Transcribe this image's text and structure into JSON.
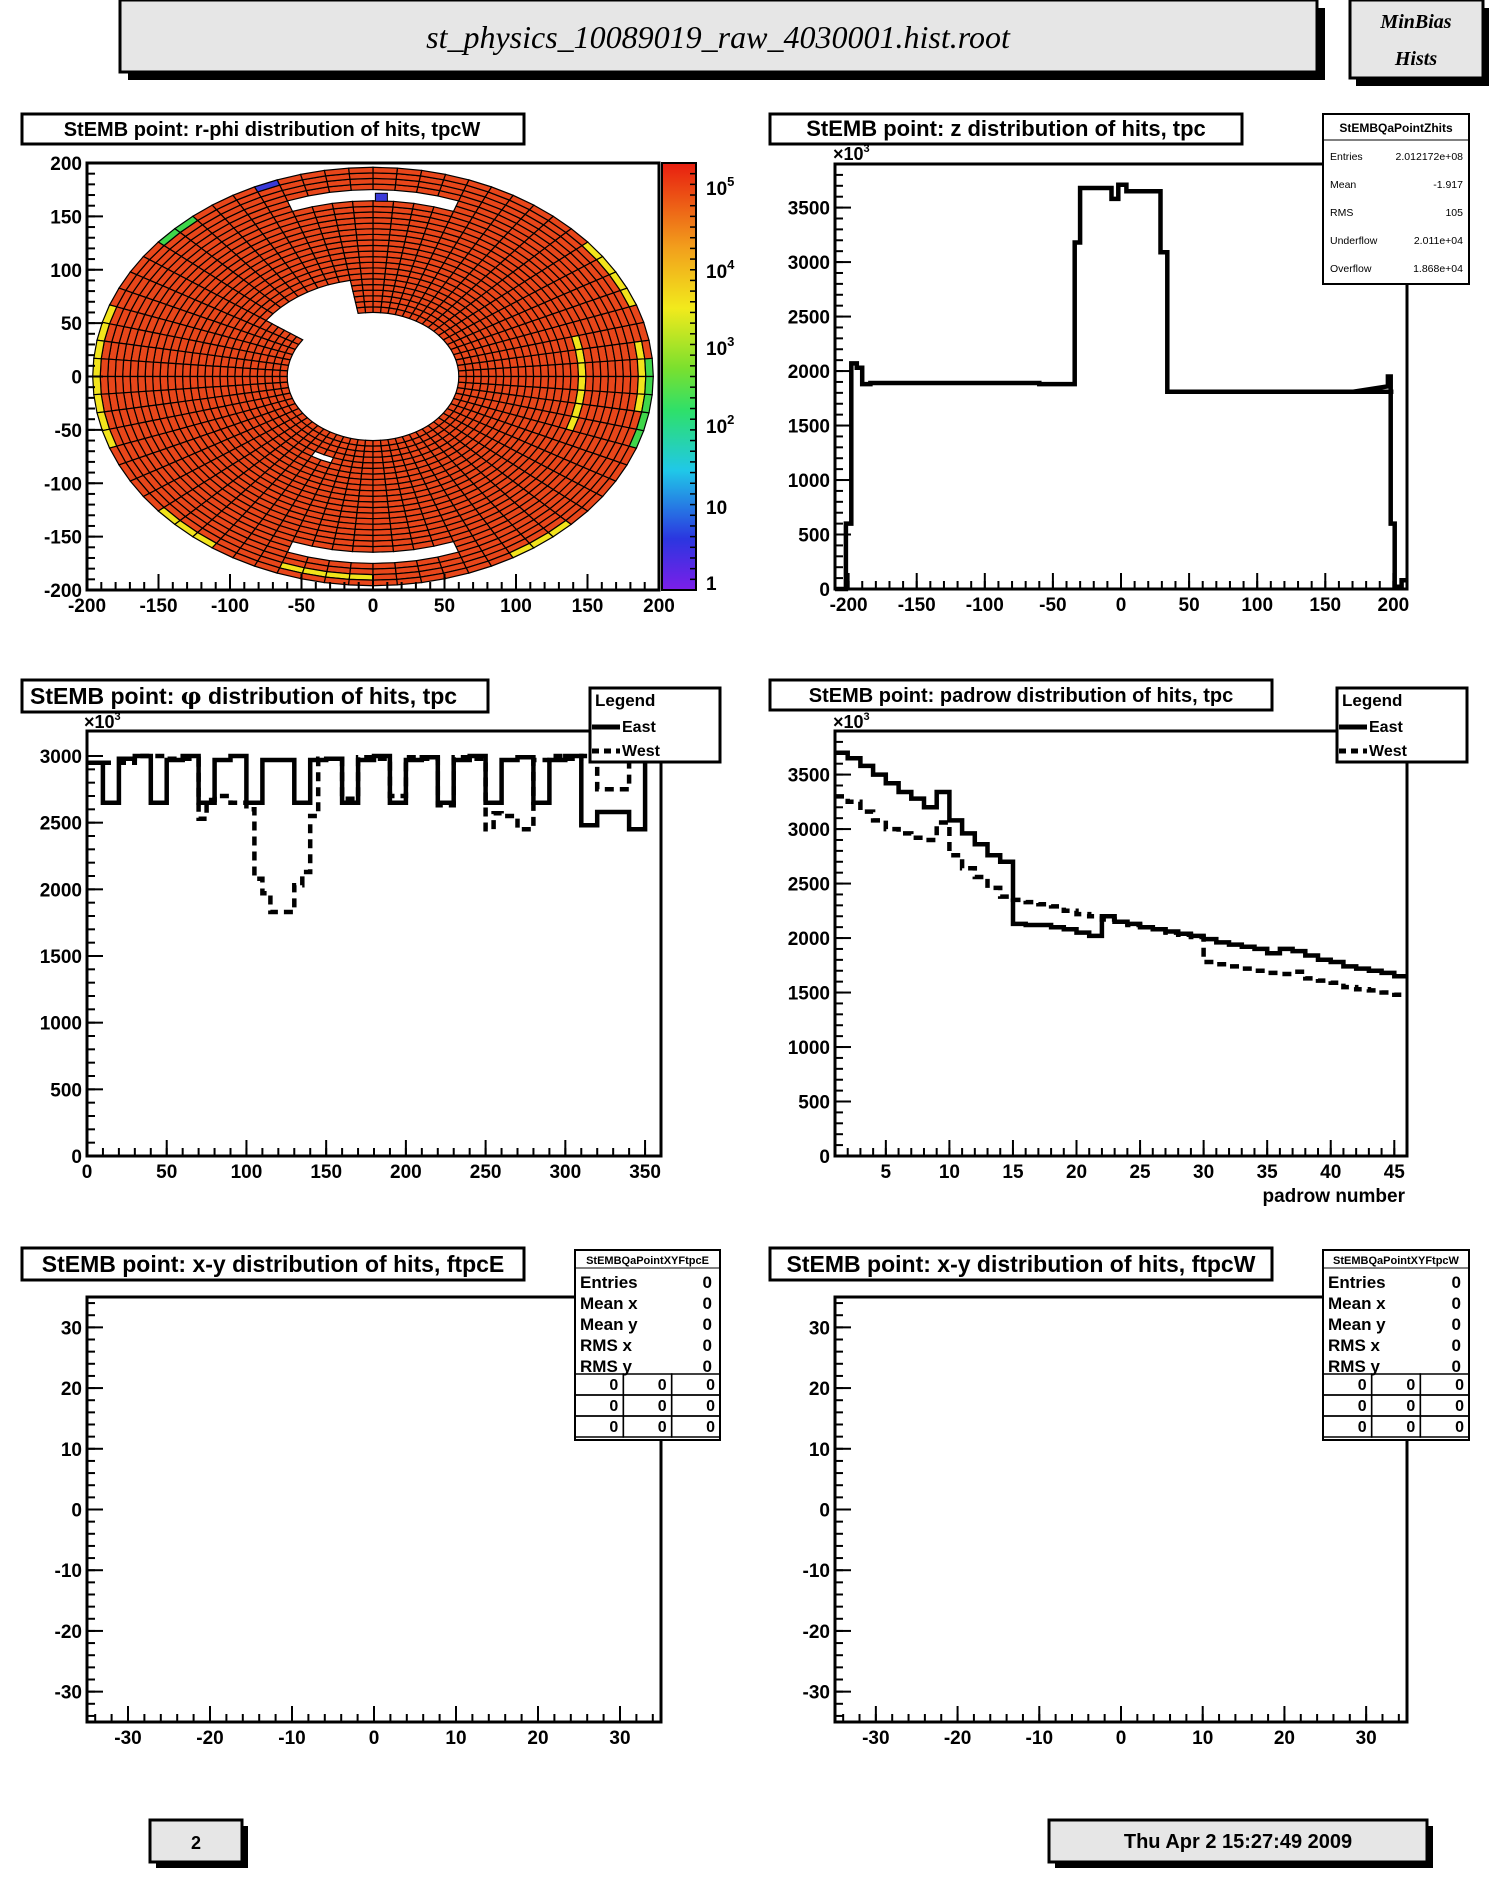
{
  "header": {
    "filename": "st_physics_10089019_raw_4030001.hist.root",
    "corner_line1": "MinBias",
    "corner_line2": "Hists"
  },
  "footer": {
    "page_number": "2",
    "timestamp": "Thu Apr  2 15:27:49 2009"
  },
  "chart_data": [
    {
      "id": "rphi",
      "type": "heatmap",
      "title": "StEMB point: r-phi distribution of hits, tpcW",
      "xlim": [
        -200,
        200
      ],
      "ylim": [
        -200,
        200
      ],
      "xticks": [
        -200,
        -150,
        -100,
        -50,
        0,
        50,
        100,
        150,
        200
      ],
      "yticks": [
        200,
        150,
        100,
        50,
        0,
        -50,
        -100,
        -150,
        -200
      ],
      "rings": [
        60,
        196
      ],
      "palette_labels": [
        "10^5",
        "10^4",
        "10^3",
        "10^2",
        "10",
        "1"
      ],
      "colors": {
        "dominant": "#e8461a",
        "yellow": "#f2e41c",
        "green": "#3fd64a",
        "blue": "#3a3ad8"
      }
    },
    {
      "id": "z",
      "type": "line",
      "title": "StEMB point: z distribution of hits, tpc",
      "xlim": [
        -210,
        210
      ],
      "ylim": [
        0,
        3900
      ],
      "multiplier": "×10",
      "multiplier_exp": "3",
      "xticks": [
        -200,
        -150,
        -100,
        -50,
        0,
        50,
        100,
        150,
        200
      ],
      "yticks": [
        0,
        500,
        1000,
        1500,
        2000,
        2500,
        3000,
        3500
      ],
      "series": [
        {
          "style": "solid",
          "x": [
            -210,
            -202,
            -202,
            -198,
            -198,
            -194,
            -194,
            -190,
            -190,
            -184,
            -184,
            -60,
            -60,
            -34,
            -34,
            -30,
            -30,
            -7,
            -7,
            -2,
            -2,
            4,
            4,
            29,
            29,
            34,
            34,
            200
          ],
          "y": [
            0,
            0,
            600,
            600,
            2070,
            2070,
            2030,
            2030,
            1880,
            1880,
            1890,
            1890,
            1880,
            1880,
            3180,
            3180,
            3680,
            3680,
            3580,
            3580,
            3710,
            3710,
            3650,
            3650,
            3090,
            3090,
            1810,
            1810
          ]
        }
      ],
      "stats": {
        "title": "StEMBQaPointZhits",
        "rows": [
          {
            "label": "Entries",
            "value": "2.012172e+08"
          },
          {
            "label": "Mean",
            "value": "-1.917"
          },
          {
            "label": "RMS",
            "value": "105"
          },
          {
            "label": "Underflow",
            "value": "2.011e+04"
          },
          {
            "label": "Overflow",
            "value": "1.868e+04"
          }
        ]
      }
    },
    {
      "id": "phi",
      "type": "line",
      "title": "StEMB point: ",
      "title_symbol": "φ",
      "title_suffix": " distribution of hits, tpc",
      "xlim": [
        0,
        360
      ],
      "ylim": [
        0,
        3000
      ],
      "multiplier": "×10",
      "multiplier_exp": "3",
      "xticks": [
        0,
        50,
        100,
        150,
        200,
        250,
        300,
        350
      ],
      "yticks": [
        0,
        500,
        1000,
        1500,
        2000,
        2500,
        3000
      ],
      "legend": {
        "title": "Legend",
        "entries": [
          "East",
          "West"
        ],
        "placement": "top-right"
      },
      "series": [
        {
          "name": "East",
          "style": "solid",
          "x": [
            0,
            10,
            10,
            20,
            20,
            30,
            30,
            40,
            40,
            50,
            50,
            60,
            60,
            70,
            70,
            80,
            80,
            90,
            90,
            100,
            100,
            110,
            110,
            120,
            120,
            130,
            130,
            140,
            140,
            150,
            150,
            160,
            160,
            170,
            170,
            180,
            180,
            190,
            190,
            200,
            200,
            210,
            210,
            220,
            220,
            230,
            230,
            240,
            240,
            250,
            250,
            260,
            260,
            270,
            270,
            280,
            280,
            290,
            290,
            300,
            300,
            310,
            310,
            320,
            320,
            330,
            330,
            340,
            340,
            350,
            350,
            355
          ],
          "y": [
            2950,
            2950,
            2650,
            2650,
            2980,
            2980,
            3000,
            3000,
            2650,
            2650,
            2970,
            2970,
            3000,
            3000,
            2650,
            2650,
            2970,
            2970,
            3000,
            3000,
            2650,
            2650,
            2970,
            2970,
            2970,
            2970,
            2650,
            2650,
            2970,
            2970,
            2980,
            2980,
            2650,
            2650,
            2970,
            2970,
            3000,
            3000,
            2650,
            2650,
            2970,
            2970,
            2990,
            2990,
            2650,
            2650,
            2970,
            2970,
            3000,
            3000,
            2650,
            2650,
            2970,
            2970,
            2990,
            2990,
            2650,
            2650,
            2970,
            2970,
            3000,
            3000,
            2480,
            2480,
            2580,
            2580,
            2580,
            2580,
            2450,
            2450,
            3000,
            3000
          ]
        },
        {
          "name": "West",
          "style": "dashed",
          "x": [
            0,
            10,
            10,
            20,
            20,
            30,
            30,
            40,
            40,
            50,
            50,
            60,
            60,
            70,
            70,
            75,
            75,
            80,
            80,
            90,
            90,
            100,
            100,
            105,
            105,
            110,
            110,
            115,
            115,
            130,
            130,
            135,
            135,
            140,
            140,
            145,
            145,
            155,
            155,
            160,
            160,
            170,
            170,
            180,
            180,
            190,
            190,
            200,
            200,
            210,
            210,
            220,
            220,
            230,
            230,
            240,
            240,
            250,
            250,
            255,
            255,
            260,
            260,
            270,
            270,
            280,
            280,
            290,
            290,
            300,
            300,
            310,
            310,
            320,
            320,
            330,
            330,
            340,
            340,
            350,
            350,
            355
          ],
          "y": [
            2950,
            2950,
            2950,
            2950,
            2950,
            2950,
            3000,
            3000,
            3000,
            3000,
            2980,
            2980,
            2980,
            2980,
            2530,
            2530,
            2670,
            2670,
            2700,
            2700,
            2650,
            2650,
            2600,
            2600,
            2080,
            2080,
            1970,
            1970,
            1830,
            1830,
            2030,
            2030,
            2130,
            2130,
            2550,
            2550,
            2980,
            2980,
            2980,
            2980,
            2680,
            2680,
            2990,
            2990,
            2980,
            2980,
            2700,
            2700,
            2990,
            2990,
            2980,
            2980,
            2630,
            2630,
            2990,
            2990,
            2980,
            2980,
            2450,
            2450,
            2570,
            2570,
            2550,
            2550,
            2450,
            2450,
            2970,
            2970,
            3000,
            3000,
            2980,
            2980,
            3000,
            3000,
            2750,
            2750,
            2750,
            2750,
            2980,
            2980,
            3000,
            3000
          ]
        }
      ]
    },
    {
      "id": "padrow",
      "type": "line",
      "title": "StEMB point: padrow distribution of hits, tpc",
      "xlabel": "padrow number",
      "xlim": [
        1,
        46
      ],
      "ylim": [
        0,
        3900
      ],
      "multiplier": "×10",
      "multiplier_exp": "3",
      "xticks": [
        5,
        10,
        15,
        20,
        25,
        30,
        35,
        40,
        45
      ],
      "yticks": [
        0,
        500,
        1000,
        1500,
        2000,
        2500,
        3000,
        3500
      ],
      "legend": {
        "title": "Legend",
        "entries": [
          "East",
          "West"
        ],
        "placement": "top-right"
      },
      "series": [
        {
          "name": "East",
          "style": "solid",
          "x": [
            1,
            2,
            3,
            4,
            5,
            6,
            7,
            8,
            9,
            10,
            11,
            12,
            13,
            14,
            15,
            16,
            17,
            18,
            19,
            20,
            21,
            22,
            23,
            24,
            25,
            26,
            27,
            28,
            29,
            30,
            31,
            32,
            33,
            34,
            35,
            36,
            37,
            38,
            39,
            40,
            41,
            42,
            43,
            44,
            45,
            46
          ],
          "y": [
            3700,
            3650,
            3580,
            3500,
            3420,
            3340,
            3280,
            3200,
            3340,
            3080,
            2960,
            2860,
            2760,
            2700,
            2130,
            2120,
            2120,
            2100,
            2080,
            2050,
            2020,
            2200,
            2150,
            2130,
            2100,
            2080,
            2060,
            2040,
            2020,
            1990,
            1960,
            1940,
            1920,
            1900,
            1860,
            1900,
            1880,
            1840,
            1800,
            1780,
            1740,
            1720,
            1700,
            1680,
            1650,
            1600
          ]
        },
        {
          "name": "West",
          "style": "dashed",
          "x": [
            1,
            2,
            3,
            4,
            5,
            6,
            7,
            8,
            9,
            10,
            11,
            12,
            13,
            14,
            15,
            16,
            17,
            18,
            19,
            20,
            21,
            22,
            23,
            24,
            25,
            26,
            27,
            28,
            29,
            30,
            31,
            32,
            33,
            34,
            35,
            36,
            37,
            38,
            39,
            40,
            41,
            42,
            43,
            44,
            45,
            46
          ],
          "y": [
            3300,
            3250,
            3160,
            3080,
            3000,
            2960,
            2920,
            2900,
            3060,
            2760,
            2640,
            2560,
            2460,
            2380,
            2350,
            2330,
            2310,
            2290,
            2250,
            2220,
            2200,
            2170,
            2150,
            2120,
            2100,
            2080,
            2050,
            2030,
            2010,
            1780,
            1760,
            1740,
            1720,
            1700,
            1680,
            1670,
            1690,
            1630,
            1610,
            1590,
            1550,
            1530,
            1520,
            1500,
            1480,
            1440
          ]
        }
      ]
    },
    {
      "id": "xyE",
      "type": "scatter",
      "title": "StEMB point: x-y distribution of hits, ftpcE",
      "xlim": [
        -35,
        35
      ],
      "ylim": [
        -35,
        35
      ],
      "xticks": [
        -30,
        -20,
        -10,
        0,
        10,
        20,
        30
      ],
      "yticks": [
        30,
        20,
        10,
        0,
        -10,
        -20,
        -30
      ],
      "stats": {
        "title": "StEMBQaPointXYFtpcE",
        "rows": [
          {
            "label": "Entries",
            "value": "0"
          },
          {
            "label": "Mean x",
            "value": "0"
          },
          {
            "label": "Mean y",
            "value": "0"
          },
          {
            "label": "RMS x",
            "value": "0"
          },
          {
            "label": "RMS y",
            "value": "0"
          }
        ],
        "grid": [
          [
            "0",
            "0",
            "0"
          ],
          [
            "0",
            "0",
            "0"
          ],
          [
            "0",
            "0",
            "0"
          ]
        ]
      }
    },
    {
      "id": "xyW",
      "type": "scatter",
      "title": "StEMB point: x-y distribution of hits, ftpcW",
      "xlim": [
        -35,
        35
      ],
      "ylim": [
        -35,
        35
      ],
      "xticks": [
        -30,
        -20,
        -10,
        0,
        10,
        20,
        30
      ],
      "yticks": [
        30,
        20,
        10,
        0,
        -10,
        -20,
        -30
      ],
      "stats": {
        "title": "StEMBQaPointXYFtpcW",
        "rows": [
          {
            "label": "Entries",
            "value": "0"
          },
          {
            "label": "Mean x",
            "value": "0"
          },
          {
            "label": "Mean y",
            "value": "0"
          },
          {
            "label": "RMS x",
            "value": "0"
          },
          {
            "label": "RMS y",
            "value": "0"
          }
        ],
        "grid": [
          [
            "0",
            "0",
            "0"
          ],
          [
            "0",
            "0",
            "0"
          ],
          [
            "0",
            "0",
            "0"
          ]
        ]
      }
    }
  ]
}
